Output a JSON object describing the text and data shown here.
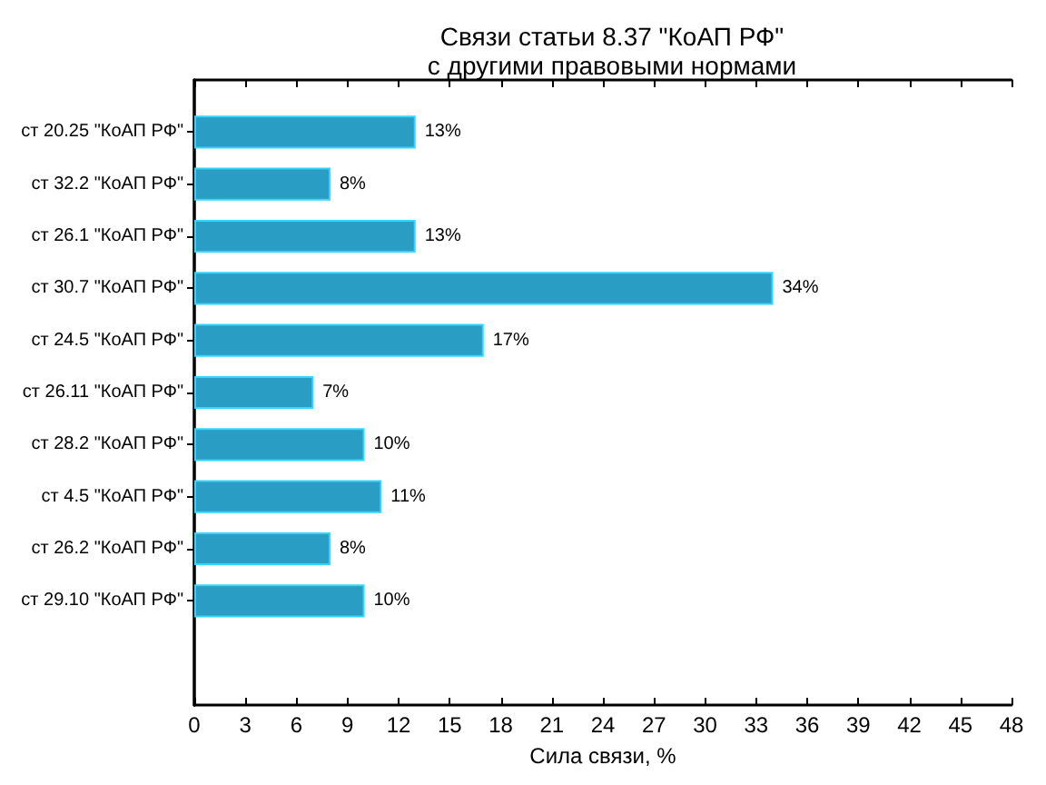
{
  "chart_data": {
    "type": "bar",
    "orientation": "horizontal",
    "title": "Связи статьи 8.37 \"КоАП РФ\"\nс другими правовыми нормами",
    "xlabel": "Сила связи, %",
    "categories": [
      "ст 20.25 \"КоАП РФ\"",
      "ст 32.2 \"КоАП РФ\"",
      "ст 26.1 \"КоАП РФ\"",
      "ст 30.7 \"КоАП РФ\"",
      "ст 24.5 \"КоАП РФ\"",
      "ст 26.11 \"КоАП РФ\"",
      "ст 28.2 \"КоАП РФ\"",
      "ст 4.5 \"КоАП РФ\"",
      "ст 26.2 \"КоАП РФ\"",
      "ст 29.10 \"КоАП РФ\""
    ],
    "values": [
      13,
      8,
      13,
      34,
      17,
      7,
      10,
      11,
      8,
      10
    ],
    "value_labels": [
      "13%",
      "8%",
      "13%",
      "34%",
      "17%",
      "7%",
      "10%",
      "11%",
      "8%",
      "10%"
    ],
    "color": "#2a9dc4",
    "xlim": [
      0,
      48
    ],
    "xticks": [
      0,
      3,
      6,
      9,
      12,
      15,
      18,
      21,
      24,
      27,
      30,
      33,
      36,
      39,
      42,
      45,
      48
    ]
  }
}
